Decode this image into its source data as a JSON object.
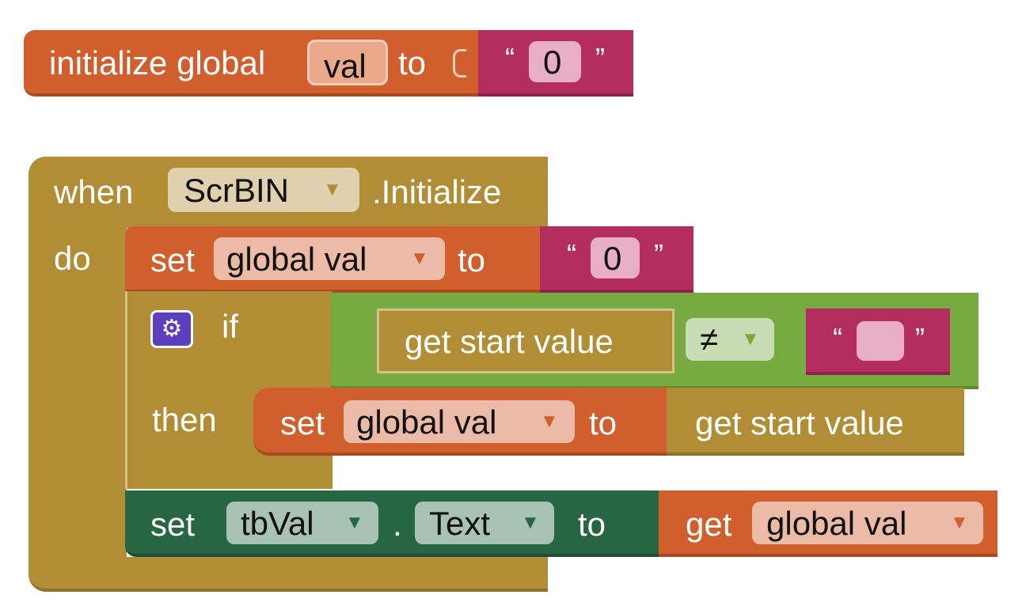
{
  "init_block": {
    "prefix": "initialize global",
    "var_name": "val",
    "to_label": "to",
    "value": "0",
    "open_quote": "“",
    "close_quote": "”"
  },
  "event_block": {
    "when_label": "when",
    "component": "ScrBIN",
    "event": ".Initialize",
    "do_label": "do"
  },
  "set_global_1": {
    "set_label": "set",
    "var": "global val",
    "to_label": "to",
    "value": "0",
    "open_quote": "“",
    "close_quote": "”"
  },
  "if_block": {
    "if_label": "if",
    "then_label": "then",
    "left_operand": "get start value",
    "operator": "≠",
    "right_value": "",
    "open_quote": "“",
    "close_quote": "”",
    "then_set": {
      "set_label": "set",
      "var": "global val",
      "to_label": "to",
      "value": "get start value"
    }
  },
  "set_text_block": {
    "set_label": "set",
    "component": "tbVal",
    "dot": ".",
    "property": "Text",
    "to_label": "to",
    "get_label": "get",
    "get_var": "global val"
  },
  "dropdown_arrow": "▼",
  "colors": {
    "variables": "#D05F2D",
    "variables_field": "#ECBBA7",
    "text": "#B32D5E",
    "text_field": "#E8AFC4",
    "event": "#B18E35",
    "event_field": "#E0D1AE",
    "control_gear": "#5B3FBE",
    "logic": "#77AB41",
    "logic_field": "#C8DDB3",
    "component_set": "#266643",
    "component_field": "#A8C2B3"
  }
}
